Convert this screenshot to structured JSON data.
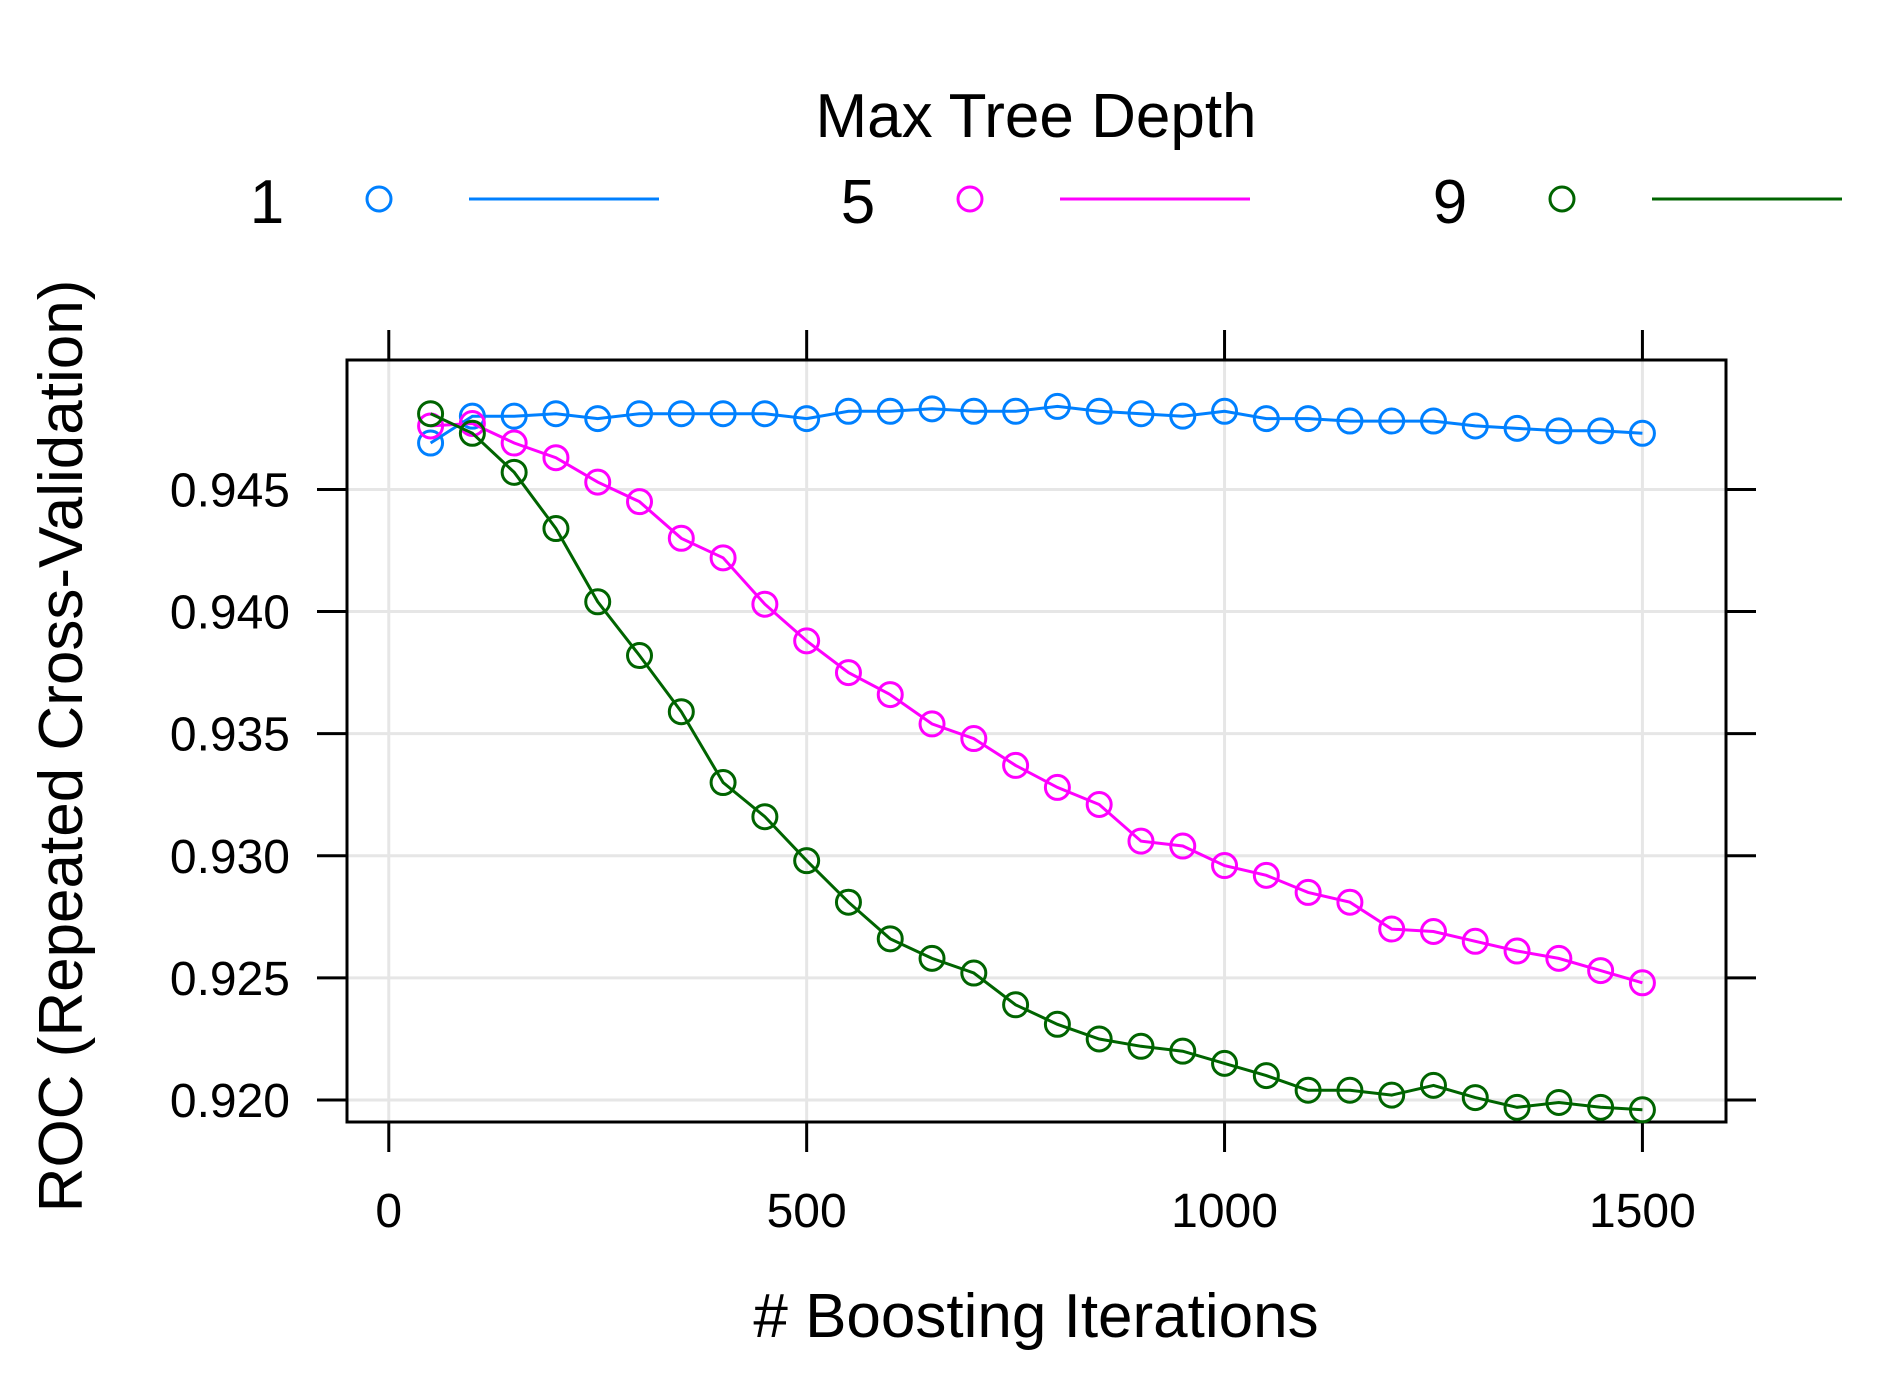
{
  "chart_data": {
    "type": "line",
    "legend": {
      "title": "Max Tree Depth",
      "placement": "top"
    },
    "xlabel": "# Boosting Iterations",
    "ylabel": "ROC (Repeated Cross-Validation)",
    "xlim": [
      -50,
      1600
    ],
    "ylim": [
      0.9191,
      0.9503
    ],
    "xticks": [
      0,
      500,
      1000,
      1500
    ],
    "xtick_labels": [
      "0",
      "500",
      "1000",
      "1500"
    ],
    "yticks": [
      0.92,
      0.925,
      0.93,
      0.935,
      0.94,
      0.945
    ],
    "ytick_labels": [
      "0.920",
      "0.925",
      "0.930",
      "0.935",
      "0.940",
      "0.945"
    ],
    "grid": true,
    "x": [
      50,
      100,
      150,
      200,
      250,
      300,
      350,
      400,
      450,
      500,
      550,
      600,
      650,
      700,
      750,
      800,
      850,
      900,
      950,
      1000,
      1050,
      1100,
      1150,
      1200,
      1250,
      1300,
      1350,
      1400,
      1450,
      1500
    ],
    "series": [
      {
        "name": "1",
        "color": "#0080ff",
        "values": [
          0.9469,
          0.948,
          0.948,
          0.9481,
          0.9479,
          0.9481,
          0.9481,
          0.9481,
          0.9481,
          0.9479,
          0.9482,
          0.9482,
          0.9483,
          0.9482,
          0.9482,
          0.9484,
          0.9482,
          0.9481,
          0.948,
          0.9482,
          0.9479,
          0.9479,
          0.9478,
          0.9478,
          0.9478,
          0.9476,
          0.9475,
          0.9474,
          0.9474,
          0.9473
        ]
      },
      {
        "name": "5",
        "color": "#ff00ff",
        "values": [
          0.9476,
          0.9477,
          0.9469,
          0.9463,
          0.9453,
          0.9445,
          0.943,
          0.9422,
          0.9403,
          0.9388,
          0.9375,
          0.9366,
          0.9354,
          0.9348,
          0.9337,
          0.9328,
          0.9321,
          0.9306,
          0.9304,
          0.9296,
          0.9292,
          0.9285,
          0.9281,
          0.927,
          0.9269,
          0.9265,
          0.9261,
          0.9258,
          0.9253,
          0.9248
        ]
      },
      {
        "name": "9",
        "color": "#006400",
        "values": [
          0.9481,
          0.9473,
          0.9457,
          0.9434,
          0.9404,
          0.9382,
          0.9359,
          0.933,
          0.9316,
          0.9298,
          0.9281,
          0.9266,
          0.9258,
          0.9252,
          0.9239,
          0.9231,
          0.9225,
          0.9222,
          0.922,
          0.9215,
          0.921,
          0.9204,
          0.9204,
          0.9202,
          0.9206,
          0.9201,
          0.9197,
          0.9199,
          0.9197,
          0.9196
        ]
      }
    ]
  }
}
